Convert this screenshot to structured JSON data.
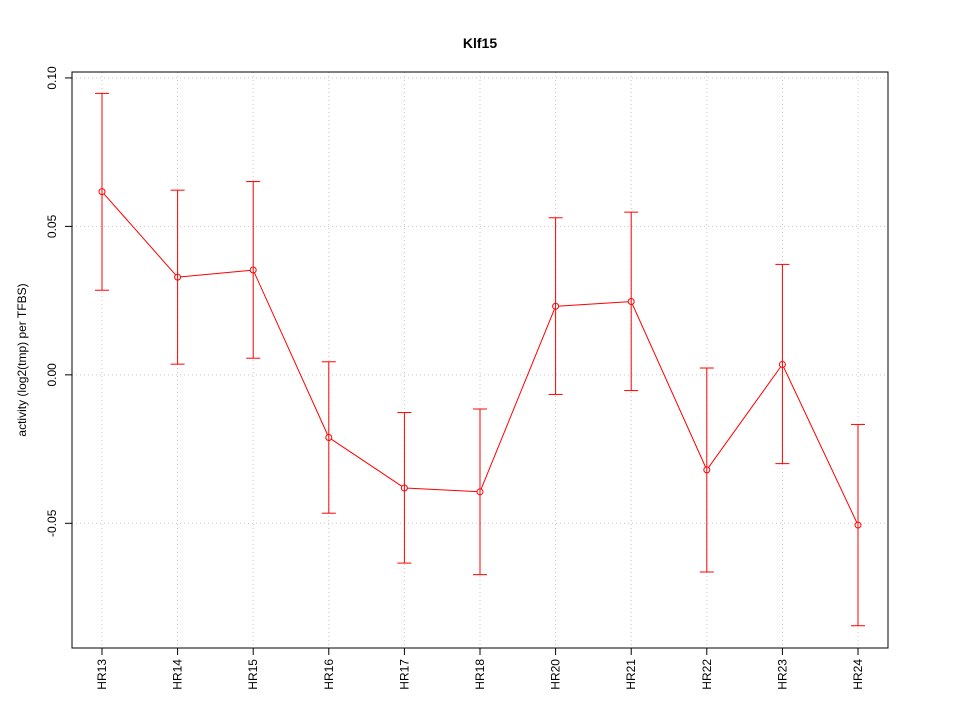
{
  "chart_data": {
    "type": "line",
    "title": "Klf15",
    "xlabel": "",
    "ylabel": "activity (log2(tmp) per TFBS)",
    "categories": [
      "HR13",
      "HR14",
      "HR15",
      "HR16",
      "HR17",
      "HR18",
      "HR20",
      "HR21",
      "HR22",
      "HR23",
      "HR24"
    ],
    "series": [
      {
        "values": [
          0.0617,
          0.0329,
          0.0353,
          -0.0211,
          -0.0381,
          -0.0394,
          0.0231,
          0.0247,
          -0.032,
          0.0035,
          -0.0506
        ],
        "lower": [
          0.0285,
          0.0036,
          0.0056,
          -0.0466,
          -0.0634,
          -0.0673,
          -0.0066,
          -0.0053,
          -0.0664,
          -0.0299,
          -0.0845
        ],
        "upper": [
          0.0948,
          0.0622,
          0.0651,
          0.0044,
          -0.0127,
          -0.0115,
          0.0529,
          0.0548,
          0.0023,
          0.0372,
          -0.0167
        ]
      }
    ],
    "yticks": [
      -0.05,
      0.0,
      0.05,
      0.1
    ],
    "ytick_labels": [
      "-0.05",
      "0.00",
      "0.05",
      "0.10"
    ],
    "ylim": [
      -0.092,
      0.102
    ],
    "grid": true,
    "colors": {
      "series": "#ff0000",
      "grid": "#c8c8c8",
      "axis": "#000000"
    }
  }
}
